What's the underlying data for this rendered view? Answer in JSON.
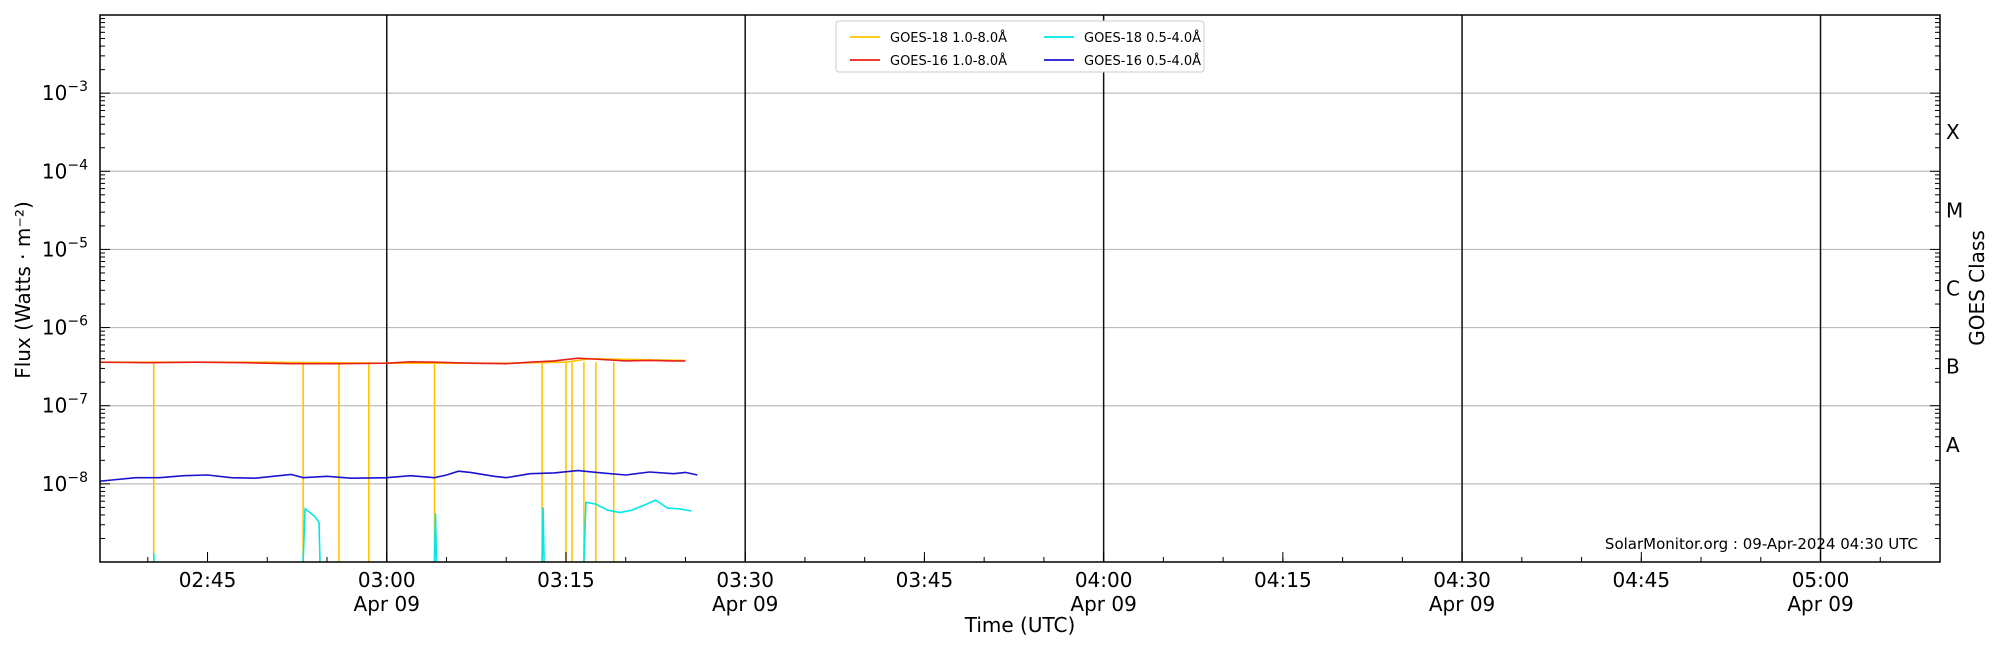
{
  "chart_data": {
    "type": "line",
    "title": "",
    "xlabel": "Time (UTC)",
    "ylabel": "Flux (Watts · m⁻²)",
    "y2label": "GOES Class",
    "yscale": "log",
    "ylim": [
      1e-09,
      0.01
    ],
    "xlim": [
      "02:36",
      "05:10"
    ],
    "grid": "horizontal-only",
    "legend_position": "top-center",
    "credit": "SolarMonitor.org : 09-Apr-2024 04:30 UTC",
    "yticks": [
      {
        "value": 1e-08,
        "base": "10",
        "exp": "−8"
      },
      {
        "value": 1e-07,
        "base": "10",
        "exp": "−7"
      },
      {
        "value": 1e-06,
        "base": "10",
        "exp": "−6"
      },
      {
        "value": 1e-05,
        "base": "10",
        "exp": "−5"
      },
      {
        "value": 0.0001,
        "base": "10",
        "exp": "−4"
      },
      {
        "value": 0.001,
        "base": "10",
        "exp": "−3"
      }
    ],
    "xticks": [
      {
        "time": "02:45",
        "date": ""
      },
      {
        "time": "03:00",
        "date": "Apr 09"
      },
      {
        "time": "03:15",
        "date": ""
      },
      {
        "time": "03:30",
        "date": "Apr 09"
      },
      {
        "time": "03:45",
        "date": ""
      },
      {
        "time": "04:00",
        "date": "Apr 09"
      },
      {
        "time": "04:15",
        "date": ""
      },
      {
        "time": "04:30",
        "date": "Apr 09"
      },
      {
        "time": "04:45",
        "date": ""
      },
      {
        "time": "05:00",
        "date": "Apr 09"
      }
    ],
    "vlines": [
      "03:00",
      "03:30",
      "04:00",
      "04:30",
      "05:00"
    ],
    "goes_classes": [
      {
        "label": "A",
        "value": 3.16e-08
      },
      {
        "label": "B",
        "value": 3.16e-07
      },
      {
        "label": "C",
        "value": 3.16e-06
      },
      {
        "label": "M",
        "value": 3.16e-05
      },
      {
        "label": "X",
        "value": 0.000316
      }
    ],
    "series": [
      {
        "name": "GOES-18 1.0-8.0Å",
        "color": "#ffc400",
        "points": [
          [
            "02:36",
            3.6e-07
          ],
          [
            "02:50",
            3.6e-07
          ],
          [
            "03:00",
            3.5e-07
          ],
          [
            "03:10",
            3.5e-07
          ],
          [
            "03:15",
            3.6e-07
          ],
          [
            "03:17",
            4e-07
          ],
          [
            "03:25",
            3.8e-07
          ]
        ],
        "dropouts": [
          "02:40:30",
          "02:53:00",
          "02:56:00",
          "02:58:30",
          "03:04:00",
          "03:13:00",
          "03:15:00",
          "03:15:30",
          "03:16:30",
          "03:17:30",
          "03:19:00"
        ]
      },
      {
        "name": "GOES-16 1.0-8.0Å",
        "color": "#e8201c",
        "points": [
          [
            "02:36",
            3.6e-07
          ],
          [
            "02:40",
            3.55e-07
          ],
          [
            "02:44",
            3.6e-07
          ],
          [
            "02:48",
            3.55e-07
          ],
          [
            "02:52",
            3.45e-07
          ],
          [
            "02:56",
            3.45e-07
          ],
          [
            "03:00",
            3.5e-07
          ],
          [
            "03:02",
            3.65e-07
          ],
          [
            "03:04",
            3.6e-07
          ],
          [
            "03:07",
            3.5e-07
          ],
          [
            "03:10",
            3.45e-07
          ],
          [
            "03:12",
            3.6e-07
          ],
          [
            "03:14",
            3.75e-07
          ],
          [
            "03:16",
            4.05e-07
          ],
          [
            "03:18",
            3.9e-07
          ],
          [
            "03:20",
            3.75e-07
          ],
          [
            "03:22",
            3.8e-07
          ],
          [
            "03:24",
            3.75e-07
          ],
          [
            "03:25",
            3.75e-07
          ]
        ]
      },
      {
        "name": "GOES-18 0.5-4.0Å",
        "color": "#00e8e8",
        "segments": [
          [
            [
              "02:40:30",
              1.3e-09
            ],
            [
              "02:40:31",
              1e-09
            ]
          ],
          [
            [
              "02:53:00",
              1e-09
            ],
            [
              "02:53:10",
              4.8e-09
            ],
            [
              "02:54:00",
              3.8e-09
            ],
            [
              "02:54:20",
              3.2e-09
            ],
            [
              "02:54:25",
              1e-09
            ]
          ],
          [
            [
              "03:04:00",
              1e-09
            ],
            [
              "03:04:05",
              4.2e-09
            ],
            [
              "03:04:10",
              1e-09
            ]
          ],
          [
            [
              "03:13:00",
              1e-09
            ],
            [
              "03:13:05",
              5e-09
            ],
            [
              "03:13:10",
              1e-09
            ]
          ],
          [
            [
              "03:16:30",
              1e-09
            ],
            [
              "03:16:40",
              5.8e-09
            ],
            [
              "03:17:30",
              5.5e-09
            ],
            [
              "03:18:30",
              4.6e-09
            ],
            [
              "03:19:30",
              4.3e-09
            ],
            [
              "03:20:30",
              4.6e-09
            ],
            [
              "03:21:30",
              5.3e-09
            ],
            [
              "03:22:30",
              6.2e-09
            ],
            [
              "03:23:30",
              4.9e-09
            ],
            [
              "03:24:30",
              4.8e-09
            ],
            [
              "03:25:30",
              4.5e-09
            ]
          ]
        ]
      },
      {
        "name": "GOES-16 0.5-4.0Å",
        "color": "#1a14d0",
        "points": [
          [
            "02:36",
            1.08e-08
          ],
          [
            "02:37",
            1.12e-08
          ],
          [
            "02:39",
            1.2e-08
          ],
          [
            "02:41",
            1.2e-08
          ],
          [
            "02:43",
            1.27e-08
          ],
          [
            "02:45",
            1.3e-08
          ],
          [
            "02:47",
            1.2e-08
          ],
          [
            "02:49",
            1.18e-08
          ],
          [
            "02:51",
            1.27e-08
          ],
          [
            "02:52",
            1.32e-08
          ],
          [
            "02:53",
            1.2e-08
          ],
          [
            "02:55",
            1.25e-08
          ],
          [
            "02:57",
            1.18e-08
          ],
          [
            "03:00",
            1.2e-08
          ],
          [
            "03:02",
            1.27e-08
          ],
          [
            "03:04",
            1.2e-08
          ],
          [
            "03:05",
            1.3e-08
          ],
          [
            "03:06",
            1.45e-08
          ],
          [
            "03:07",
            1.4e-08
          ],
          [
            "03:09",
            1.25e-08
          ],
          [
            "03:10",
            1.2e-08
          ],
          [
            "03:12",
            1.35e-08
          ],
          [
            "03:14",
            1.38e-08
          ],
          [
            "03:16",
            1.48e-08
          ],
          [
            "03:18",
            1.38e-08
          ],
          [
            "03:20",
            1.3e-08
          ],
          [
            "03:22",
            1.42e-08
          ],
          [
            "03:24",
            1.35e-08
          ],
          [
            "03:25",
            1.4e-08
          ],
          [
            "03:26",
            1.3e-08
          ]
        ]
      }
    ]
  }
}
